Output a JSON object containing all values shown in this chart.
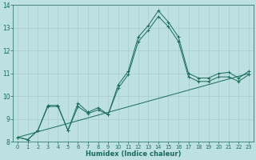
{
  "xlabel": "Humidex (Indice chaleur)",
  "ylabel": "",
  "xlim": [
    -0.5,
    23.5
  ],
  "ylim": [
    8,
    14
  ],
  "yticks": [
    8,
    9,
    10,
    11,
    12,
    13,
    14
  ],
  "xticks": [
    0,
    1,
    2,
    3,
    4,
    5,
    6,
    7,
    8,
    9,
    10,
    11,
    12,
    13,
    14,
    15,
    16,
    17,
    18,
    19,
    20,
    21,
    22,
    23
  ],
  "bg_color": "#bde0e0",
  "line_color": "#1a6b5a",
  "grid_color": "#a8cccc",
  "series1_x": [
    0,
    1,
    2,
    3,
    4,
    5,
    6,
    7,
    8,
    9,
    10,
    11,
    12,
    13,
    14,
    15,
    16,
    17,
    18,
    19,
    20,
    21,
    22,
    23
  ],
  "series1_y": [
    8.2,
    8.1,
    8.5,
    9.6,
    9.6,
    8.5,
    9.7,
    9.3,
    9.5,
    9.2,
    10.5,
    11.1,
    12.6,
    13.1,
    13.75,
    13.25,
    12.6,
    11.0,
    10.8,
    10.8,
    11.0,
    11.05,
    10.8,
    11.1
  ],
  "series2_x": [
    0,
    1,
    2,
    3,
    4,
    5,
    6,
    7,
    8,
    9,
    10,
    11,
    12,
    13,
    14,
    15,
    16,
    17,
    18,
    19,
    20,
    21,
    22,
    23
  ],
  "series2_y": [
    8.2,
    8.1,
    8.5,
    9.55,
    9.55,
    8.5,
    9.55,
    9.25,
    9.4,
    9.2,
    10.35,
    10.95,
    12.4,
    12.9,
    13.5,
    13.05,
    12.4,
    10.85,
    10.65,
    10.65,
    10.85,
    10.85,
    10.65,
    10.95
  ],
  "series3_x": [
    0,
    23
  ],
  "series3_y": [
    8.2,
    11.0
  ]
}
